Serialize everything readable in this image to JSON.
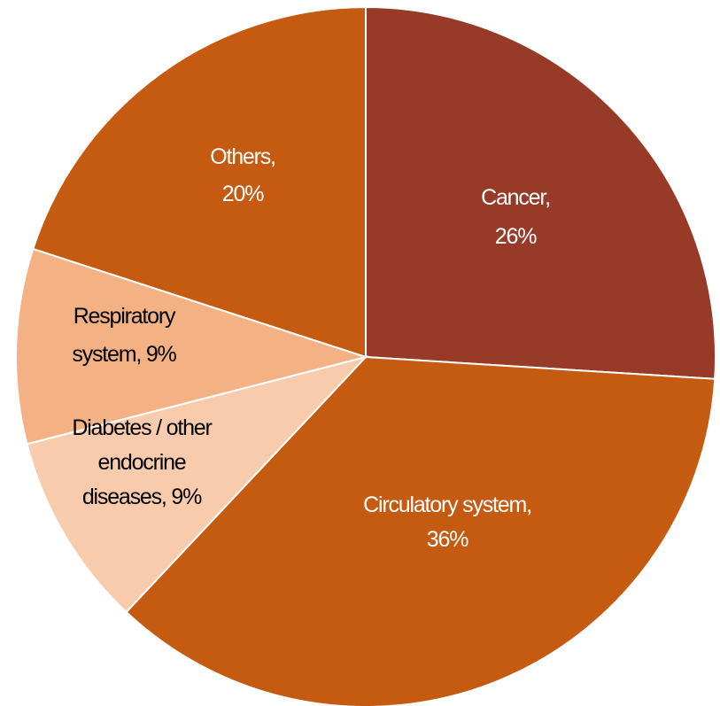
{
  "chart_data": {
    "type": "pie",
    "title": "",
    "slices": [
      {
        "name": "Cancer",
        "value": 26,
        "label_lines": [
          "Cancer,",
          "26%"
        ],
        "color": "#973A28",
        "text_color": "#ffffff"
      },
      {
        "name": "Circulatory system",
        "value": 36,
        "label_lines": [
          "Circulatory system,",
          "36%"
        ],
        "color": "#C55A11",
        "text_color": "#ffffff"
      },
      {
        "name": "Diabetes / other endocrine diseases",
        "value": 9,
        "label_lines": [
          "Diabetes / other",
          "endocrine",
          "diseases, 9%"
        ],
        "color": "#F8CBAD",
        "text_color": "#000000"
      },
      {
        "name": "Respiratory system",
        "value": 9,
        "label_lines": [
          "Respiratory",
          "system, 9%"
        ],
        "color": "#F4B183",
        "text_color": "#000000"
      },
      {
        "name": "Others",
        "value": 20,
        "label_lines": [
          "Others,",
          "20%"
        ],
        "color": "#C55A11",
        "text_color": "#ffffff"
      }
    ]
  }
}
